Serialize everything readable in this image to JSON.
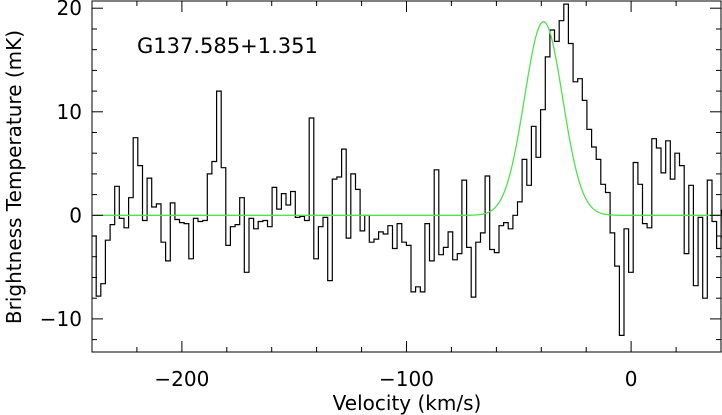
{
  "chart_data": {
    "type": "line",
    "title": "G137.585+1.351",
    "xlabel": "Velocity (km/s)",
    "ylabel": "Brightness Temperature (mK)",
    "xlim": [
      -240,
      40
    ],
    "ylim": [
      -13.2,
      20.7
    ],
    "xticks": [
      -200,
      -100,
      0
    ],
    "xtick_labels": [
      "−200",
      "−100",
      "0"
    ],
    "yticks": [
      -10,
      0,
      10,
      20
    ],
    "ytick_labels": [
      "−10",
      "0",
      "10",
      "20"
    ],
    "grid": false,
    "legend": "none",
    "series": [
      {
        "style": "step",
        "color": "#000000",
        "x_start": -240.2,
        "x_step": 2.061,
        "values": [
          -2.0,
          -7.8,
          -6.6,
          -2.4,
          -0.9,
          2.8,
          -0.3,
          -1.2,
          1.7,
          7.5,
          4.8,
          -0.5,
          3.6,
          0.8,
          1.1,
          -2.6,
          -4.4,
          1.2,
          -0.4,
          -0.7,
          -0.8,
          -4.2,
          -0.3,
          -0.6,
          -0.5,
          4.0,
          5.2,
          12.0,
          4.6,
          -2.9,
          -1.1,
          -0.9,
          1.7,
          -5.5,
          -0.3,
          -1.3,
          -0.6,
          -0.5,
          -1.1,
          2.7,
          0.6,
          2.1,
          1.0,
          2.3,
          -0.2,
          -0.1,
          -0.5,
          9.4,
          -4.2,
          -1.1,
          -0.2,
          -6.3,
          3.5,
          3.7,
          6.4,
          -2.2,
          4.0,
          2.5,
          -1.5,
          0.0,
          -2.6,
          -2.3,
          -1.6,
          -1.8,
          -1.0,
          -3.2,
          -0.8,
          -2.6,
          -2.9,
          -7.4,
          -6.9,
          -7.4,
          -0.8,
          -4.4,
          4.4,
          -3.8,
          -3.1,
          -1.6,
          -4.3,
          -3.7,
          3.4,
          -3.1,
          -7.9,
          -2.6,
          -1.7,
          3.8,
          -3.3,
          -3.6,
          -1.0,
          -0.7,
          -1.3,
          0.0,
          1.3,
          5.4,
          2.9,
          8.6,
          5.6,
          10.2,
          15.3,
          17.9,
          16.8,
          18.8,
          20.4,
          16.6,
          12.9,
          13.2,
          11.1,
          8.3,
          6.6,
          5.4,
          3.0,
          2.2,
          -1.7,
          -4.9,
          -11.6,
          -1.3,
          -5.5,
          5.1,
          3.0,
          -0.8,
          -1.2,
          7.4,
          6.5,
          4.1,
          7.2,
          3.5,
          6.0,
          4.8,
          -3.7,
          2.9,
          -6.8,
          -0.2,
          -8.0,
          3.4,
          -0.6,
          -3.2,
          0.5,
          0.4,
          -2.1
        ]
      },
      {
        "style": "gaussian-fit",
        "color": "#4ee24e",
        "amplitude": 18.7,
        "center": -39.0,
        "fwhm": 20.0
      }
    ]
  }
}
